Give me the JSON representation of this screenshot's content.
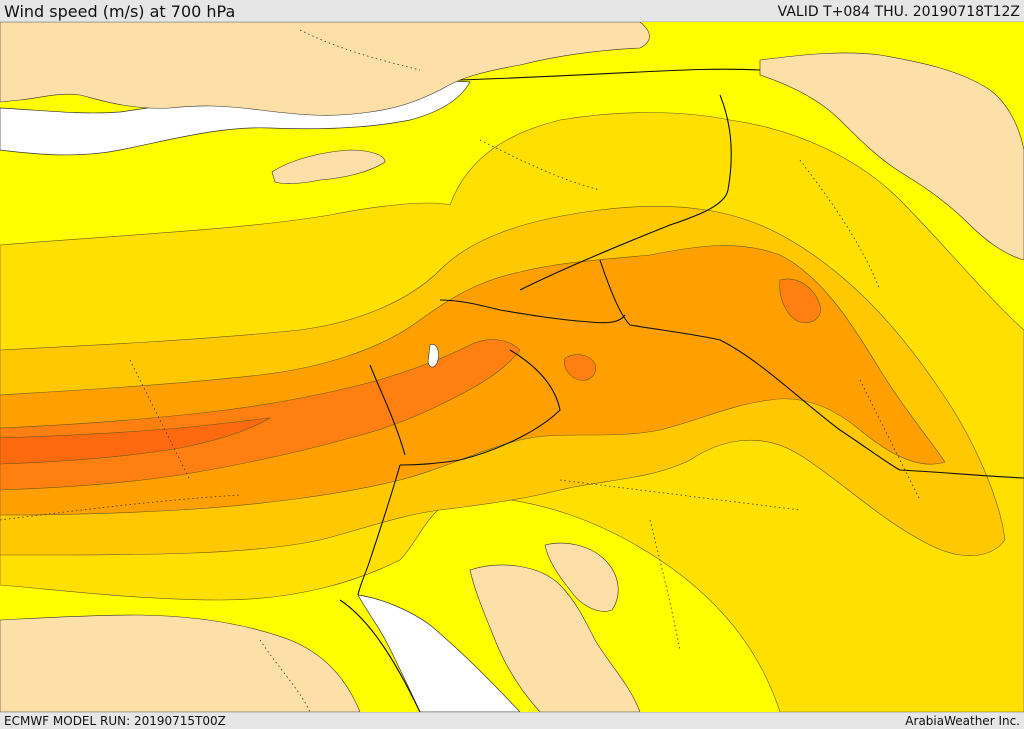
{
  "header": {
    "title": "Wind speed (m/s) at 700 hPa",
    "valid": "VALID T+084 THU. 20190718T12Z"
  },
  "footer": {
    "model_run": "ECMWF MODEL RUN: 20190715T00Z",
    "credit": "ArabiaWeather Inc."
  },
  "map": {
    "variable": "wind speed",
    "level": "700 hPa",
    "colors": {
      "land_no_data": "#fde0a8",
      "sea": "#ffffff",
      "band_1": "#ffff00",
      "band_2": "#ffe000",
      "band_3": "#ffc800",
      "band_4": "#ffa000",
      "band_5": "#ff8010",
      "band_6": "#ff6a10"
    }
  }
}
